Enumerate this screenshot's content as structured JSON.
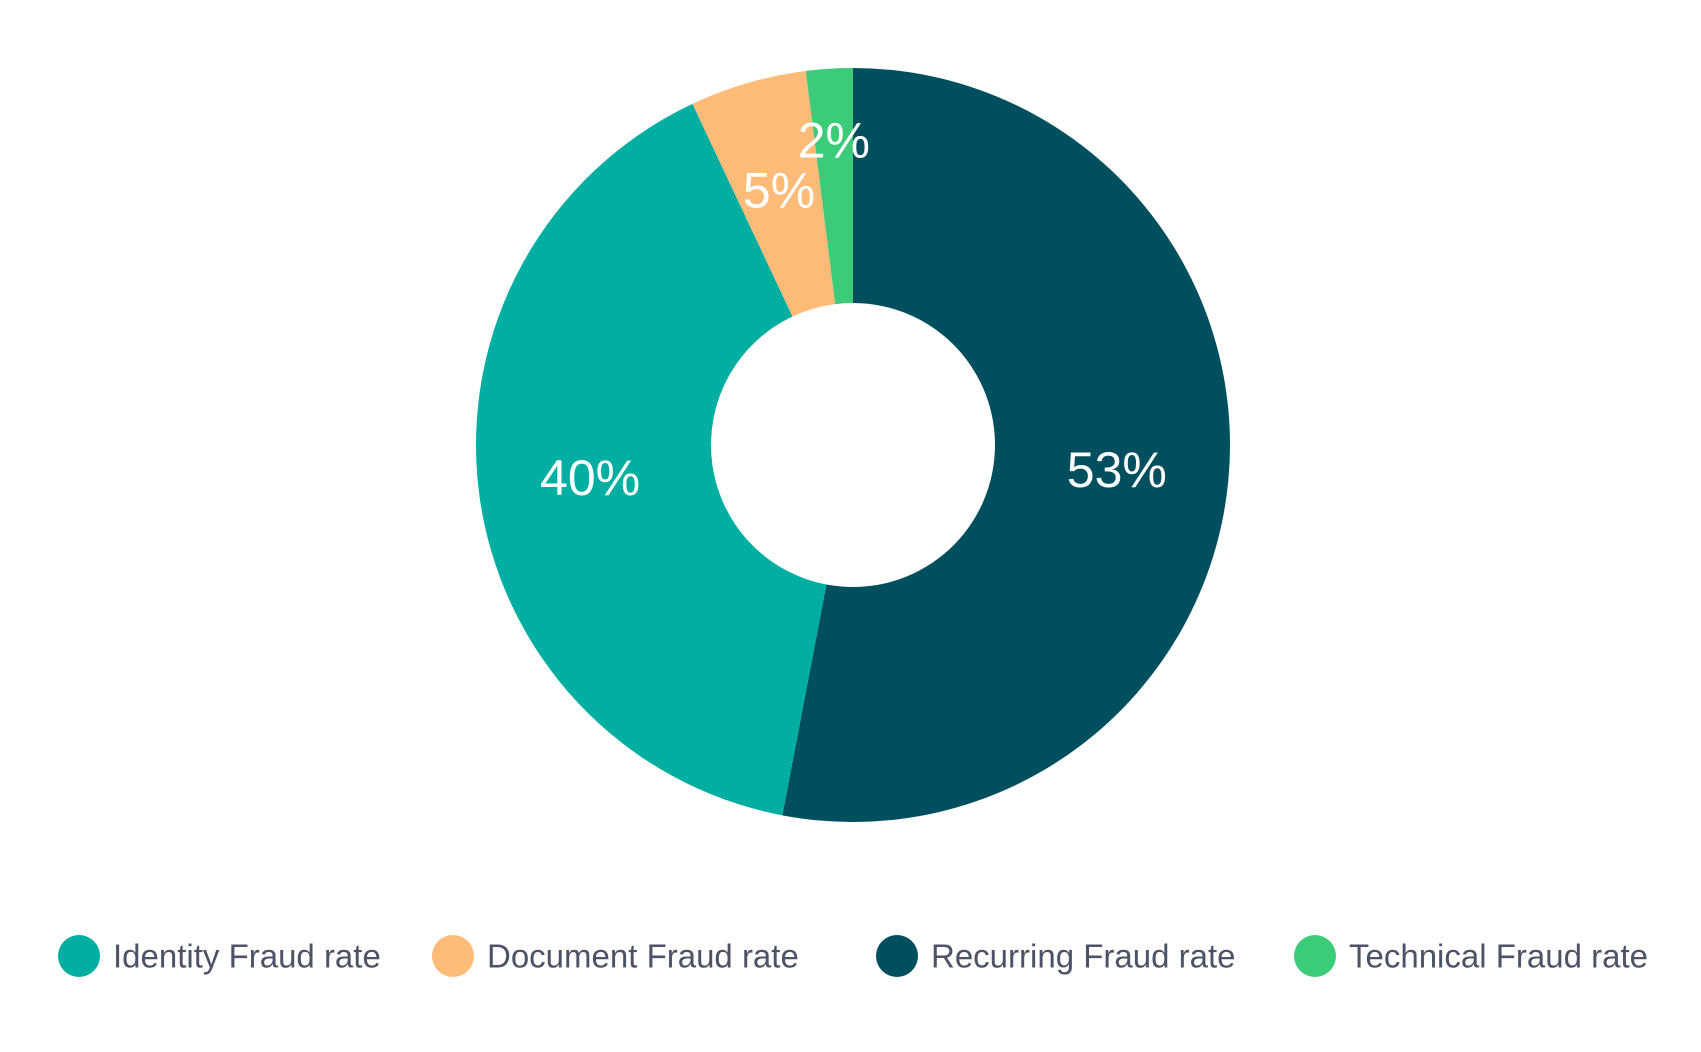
{
  "chart_data": {
    "type": "pie",
    "variant": "donut",
    "title": "",
    "start_angle_deg": 0,
    "direction": "clockwise",
    "categories": [
      "Recurring Fraud rate",
      "Identity Fraud rate",
      "Document Fraud rate",
      "Technical Fraud rate"
    ],
    "values": [
      53,
      40,
      5,
      2
    ],
    "value_labels": [
      "53%",
      "40%",
      "5%",
      "2%"
    ],
    "colors": [
      "#004f5f",
      "#00afa1",
      "#ffbb77",
      "#3ccb79"
    ],
    "legend": {
      "position": "bottom",
      "items": [
        {
          "label": "Identity Fraud rate",
          "color": "#00afa1"
        },
        {
          "label": "Document Fraud rate",
          "color": "#ffbb77"
        },
        {
          "label": "Recurring Fraud rate",
          "color": "#004f5f"
        },
        {
          "label": "Technical Fraud rate",
          "color": "#3ccb79"
        }
      ]
    }
  }
}
